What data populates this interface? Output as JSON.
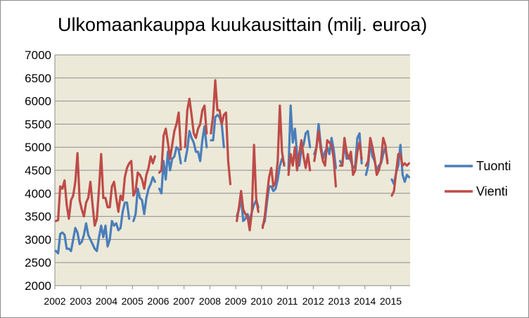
{
  "chart_data": {
    "type": "line",
    "title": "Ulkomaankauppa kuukausittain (milj. euroa)",
    "xlabel": "",
    "ylabel": "",
    "ylim": [
      2000,
      7000
    ],
    "y_ticks": [
      2000,
      2500,
      3000,
      3500,
      4000,
      4500,
      5000,
      5500,
      6000,
      6500,
      7000
    ],
    "x_tick_labels": [
      "2002",
      "2003",
      "2004",
      "2005",
      "2006",
      "2007",
      "2008",
      "2009",
      "2010",
      "2011",
      "2012",
      "2013",
      "2014",
      "2015"
    ],
    "x_start_year": 2002,
    "months": 165,
    "grid": "horizontal",
    "legend_position": "right",
    "series": [
      {
        "name": "Tuonti",
        "color": "#4a7ebb",
        "values": [
          2750,
          2700,
          3120,
          3150,
          3100,
          2800,
          2800,
          2750,
          3000,
          3250,
          3150,
          2900,
          2950,
          3100,
          3350,
          3100,
          3000,
          2900,
          2800,
          2750,
          3050,
          3300,
          3050,
          3300,
          2850,
          3000,
          3400,
          3300,
          3350,
          3200,
          3250,
          3600,
          3800,
          3800,
          3450,
          null,
          3400,
          3550,
          4100,
          3900,
          3850,
          3550,
          3900,
          4100,
          4200,
          4350,
          4250,
          null,
          4100,
          4000,
          4700,
          4300,
          4900,
          4500,
          4750,
          4800,
          5000,
          4950,
          4650,
          null,
          4700,
          4950,
          5350,
          5200,
          5100,
          4900,
          4900,
          4700,
          5150,
          5450,
          5000,
          null,
          5150,
          5150,
          5650,
          5700,
          5650,
          5500,
          5000,
          null,
          null,
          null,
          null,
          null,
          3500,
          3650,
          3900,
          3400,
          3450,
          3550,
          3400,
          3600,
          3750,
          3850,
          3700,
          null,
          3300,
          3400,
          3800,
          4150,
          4150,
          4050,
          4100,
          4300,
          4600,
          4750,
          4650,
          null,
          4500,
          5900,
          5100,
          5400,
          4850,
          4600,
          4950,
          5050,
          5300,
          5350,
          5000,
          null,
          4850,
          5000,
          5500,
          5050,
          4750,
          4900,
          5000,
          4850,
          5200,
          4950,
          4550,
          null,
          4700,
          4600,
          5100,
          4750,
          4800,
          4700,
          4550,
          4600,
          5200,
          5300,
          4650,
          null,
          4400,
          4600,
          5100,
          4800,
          4700,
          4500,
          4600,
          4650,
          4850,
          5000,
          4700,
          null,
          4300,
          4200,
          4450,
          4600,
          5050,
          4400,
          4250,
          4400,
          4350
        ]
      },
      {
        "name": "Vienti",
        "color": "#be4b48",
        "values": [
          3400,
          3420,
          4150,
          4100,
          4280,
          3750,
          3450,
          3850,
          3950,
          4250,
          4870,
          3850,
          3650,
          3500,
          3800,
          3900,
          4250,
          3750,
          3300,
          3450,
          4100,
          4850,
          3900,
          3900,
          3700,
          3700,
          4150,
          4250,
          3900,
          3600,
          3950,
          3850,
          4350,
          4550,
          4650,
          4700,
          3950,
          4050,
          4450,
          4400,
          4300,
          4100,
          4400,
          4550,
          4800,
          4650,
          4800,
          null,
          4450,
          4500,
          5250,
          5400,
          5100,
          4750,
          5050,
          5350,
          5500,
          5750,
          4950,
          null,
          5000,
          5800,
          6050,
          5700,
          5300,
          5200,
          5400,
          5500,
          5800,
          5900,
          5300,
          null,
          5300,
          5700,
          6450,
          5800,
          5800,
          5500,
          5700,
          5750,
          4700,
          4200,
          null,
          null,
          3400,
          3700,
          4050,
          3650,
          3550,
          3500,
          3200,
          3600,
          5050,
          3900,
          3600,
          null,
          3250,
          3500,
          3950,
          4350,
          4550,
          4150,
          4250,
          4700,
          5900,
          4900,
          4600,
          null,
          4400,
          4850,
          4600,
          5000,
          4500,
          4850,
          5150,
          4800,
          4550,
          4850,
          4500,
          null,
          4700,
          5000,
          5350,
          4950,
          4700,
          4600,
          5150,
          5100,
          5050,
          4750,
          4150,
          null,
          4600,
          4600,
          5200,
          4900,
          4750,
          4900,
          4400,
          4500,
          4900,
          5100,
          4750,
          null,
          4600,
          4700,
          5200,
          5000,
          4750,
          4400,
          4500,
          4700,
          5200,
          5050,
          4650,
          null,
          3950,
          4050,
          4450,
          4850,
          4850,
          4600,
          4650,
          4600,
          4650
        ]
      }
    ]
  }
}
